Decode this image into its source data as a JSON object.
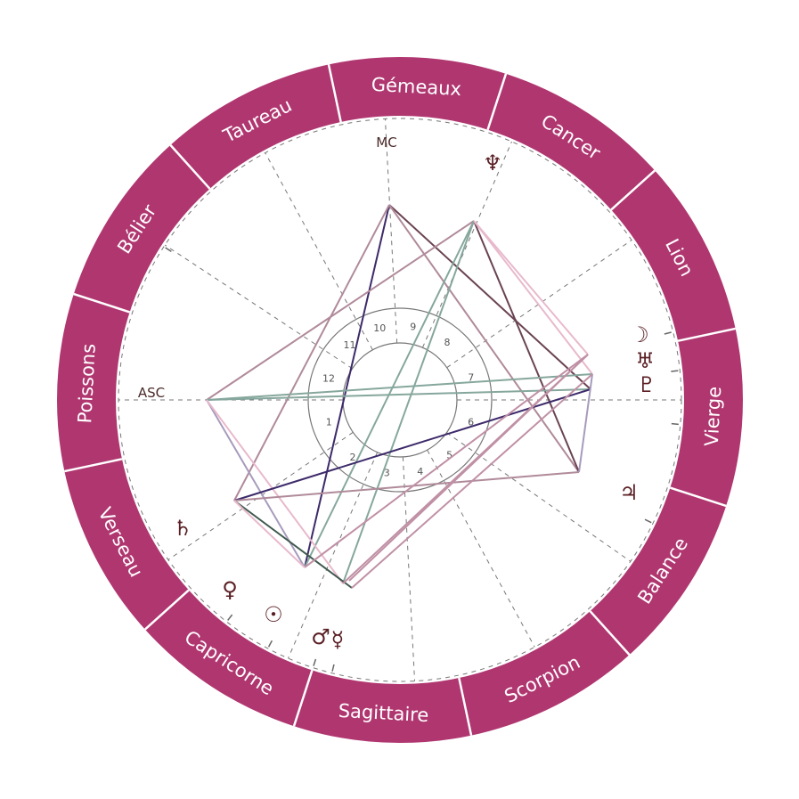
{
  "colors": {
    "ring": "#b03670",
    "ring_text": "#ffffff",
    "glyph": "#5a1f24",
    "dash": "#777777"
  },
  "zodiac": [
    {
      "name": "Poissons"
    },
    {
      "name": "Verseau"
    },
    {
      "name": "Capricorne"
    },
    {
      "name": "Sagittaire"
    },
    {
      "name": "Scorpion"
    },
    {
      "name": "Balance"
    },
    {
      "name": "Vierge"
    },
    {
      "name": "Lion"
    },
    {
      "name": "Cancer"
    },
    {
      "name": "Gémeaux"
    },
    {
      "name": "Taureau"
    },
    {
      "name": "Bélier"
    }
  ],
  "houses": [
    "1",
    "2",
    "3",
    "4",
    "5",
    "6",
    "7",
    "8",
    "9",
    "10",
    "11",
    "12"
  ],
  "angles": {
    "asc": "ASC",
    "mc": "MC"
  },
  "planets": [
    {
      "name": "neptune",
      "glyph": "♆"
    },
    {
      "name": "moon",
      "glyph": "☽"
    },
    {
      "name": "uranus",
      "glyph": "♅"
    },
    {
      "name": "pluto",
      "glyph": "♇"
    },
    {
      "name": "jupiter",
      "glyph": "♃"
    },
    {
      "name": "saturn",
      "glyph": "♄"
    },
    {
      "name": "venus",
      "glyph": "♀"
    },
    {
      "name": "sun",
      "glyph": "☉"
    },
    {
      "name": "mars",
      "glyph": "♂"
    },
    {
      "name": "mercury",
      "glyph": "☿"
    }
  ],
  "aspects": [
    {
      "from": "mc",
      "to": "venus",
      "color": "#3d2a6a"
    },
    {
      "from": "mc",
      "to": "pluto",
      "color": "#6a4352"
    },
    {
      "from": "mc",
      "to": "saturn",
      "color": "#b08a9a"
    },
    {
      "from": "mc",
      "to": "jupiter",
      "color": "#b08a9a"
    },
    {
      "from": "neptune",
      "to": "asc",
      "color": "#b08a9a"
    },
    {
      "from": "neptune",
      "to": "venus",
      "color": "#86a79d"
    },
    {
      "from": "neptune",
      "to": "sun",
      "color": "#86a79d"
    },
    {
      "from": "neptune",
      "to": "jupiter",
      "color": "#6a4352"
    },
    {
      "from": "neptune",
      "to": "moon",
      "color": "#e8b9cc"
    },
    {
      "from": "neptune",
      "to": "uranus",
      "color": "#e8b9cc"
    },
    {
      "from": "asc",
      "to": "uranus",
      "color": "#86a79d"
    },
    {
      "from": "asc",
      "to": "pluto",
      "color": "#86a79d"
    },
    {
      "from": "asc",
      "to": "venus",
      "color": "#a79bbd"
    },
    {
      "from": "asc",
      "to": "sun",
      "color": "#e8b9cc"
    },
    {
      "from": "saturn",
      "to": "pluto",
      "color": "#3d2a6a"
    },
    {
      "from": "saturn",
      "to": "mars",
      "color": "#3f5a4f"
    },
    {
      "from": "saturn",
      "to": "jupiter",
      "color": "#b08a9a"
    },
    {
      "from": "jupiter",
      "to": "uranus",
      "color": "#a79bbd"
    },
    {
      "from": "venus",
      "to": "moon",
      "color": "#c090a5"
    },
    {
      "from": "sun",
      "to": "moon",
      "color": "#c090a5"
    },
    {
      "from": "mars",
      "to": "uranus",
      "color": "#c090a5"
    },
    {
      "from": "mercury",
      "to": "moon",
      "color": "#c090a5"
    },
    {
      "from": "venus",
      "to": "saturn",
      "color": "#e8b9cc"
    }
  ]
}
